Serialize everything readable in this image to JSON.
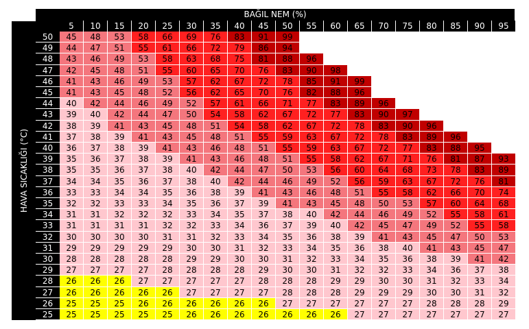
{
  "chart_data": {
    "type": "heatmap",
    "xlabel": "BAĞIL NEM (%)",
    "ylabel": "HAVA SICAKLIĞI (°C)",
    "x": [
      5,
      10,
      15,
      20,
      25,
      30,
      35,
      40,
      45,
      50,
      55,
      60,
      65,
      70,
      75,
      80,
      85,
      90,
      95
    ],
    "y": [
      50,
      49,
      48,
      47,
      46,
      45,
      44,
      43,
      42,
      41,
      40,
      39,
      38,
      37,
      36,
      35,
      34,
      33,
      32,
      31,
      30,
      29,
      28,
      27,
      26,
      25
    ],
    "values": [
      [
        45,
        48,
        53,
        58,
        66,
        69,
        76,
        83,
        91,
        99
      ],
      [
        44,
        47,
        51,
        55,
        61,
        66,
        72,
        79,
        86,
        94
      ],
      [
        43,
        46,
        49,
        53,
        58,
        63,
        68,
        75,
        81,
        88,
        96
      ],
      [
        42,
        45,
        48,
        51,
        55,
        60,
        65,
        70,
        76,
        83,
        90,
        98
      ],
      [
        41,
        43,
        46,
        49,
        53,
        57,
        62,
        67,
        72,
        78,
        85,
        91,
        99
      ],
      [
        41,
        43,
        45,
        48,
        52,
        56,
        62,
        65,
        70,
        76,
        82,
        88,
        96
      ],
      [
        40,
        42,
        44,
        46,
        49,
        52,
        57,
        61,
        66,
        71,
        77,
        83,
        89,
        96
      ],
      [
        39,
        40,
        42,
        44,
        47,
        50,
        54,
        58,
        62,
        67,
        72,
        77,
        83,
        90,
        97
      ],
      [
        38,
        39,
        41,
        43,
        45,
        48,
        51,
        54,
        58,
        62,
        67,
        72,
        78,
        83,
        90,
        96
      ],
      [
        37,
        38,
        39,
        41,
        43,
        45,
        48,
        51,
        55,
        59,
        63,
        67,
        72,
        78,
        83,
        89,
        96
      ],
      [
        36,
        37,
        38,
        39,
        41,
        43,
        46,
        48,
        51,
        55,
        59,
        63,
        67,
        72,
        77,
        83,
        88,
        95
      ],
      [
        35,
        36,
        37,
        38,
        39,
        41,
        43,
        46,
        48,
        51,
        55,
        58,
        62,
        67,
        71,
        76,
        81,
        87,
        93
      ],
      [
        35,
        35,
        36,
        37,
        38,
        40,
        42,
        44,
        47,
        50,
        53,
        56,
        60,
        64,
        68,
        73,
        78,
        83,
        89
      ],
      [
        34,
        34,
        35,
        36,
        37,
        38,
        40,
        42,
        44,
        46,
        49,
        52,
        56,
        59,
        63,
        67,
        72,
        76,
        81
      ],
      [
        33,
        33,
        34,
        34,
        35,
        36,
        38,
        39,
        41,
        43,
        46,
        48,
        51,
        55,
        58,
        62,
        66,
        70,
        74
      ],
      [
        32,
        32,
        33,
        33,
        34,
        35,
        36,
        37,
        39,
        41,
        43,
        45,
        48,
        50,
        53,
        57,
        60,
        64,
        68
      ],
      [
        31,
        31,
        32,
        32,
        32,
        33,
        34,
        35,
        37,
        38,
        40,
        42,
        44,
        46,
        49,
        52,
        55,
        58,
        61
      ],
      [
        31,
        31,
        31,
        31,
        32,
        32,
        33,
        34,
        36,
        37,
        39,
        40,
        42,
        45,
        47,
        49,
        52,
        55,
        58
      ],
      [
        30,
        30,
        30,
        30,
        31,
        31,
        32,
        33,
        34,
        35,
        36,
        38,
        39,
        41,
        43,
        45,
        47,
        50,
        53
      ],
      [
        29,
        29,
        29,
        29,
        29,
        30,
        30,
        31,
        32,
        33,
        34,
        35,
        36,
        38,
        40,
        41,
        43,
        45,
        47
      ],
      [
        28,
        28,
        28,
        28,
        28,
        29,
        29,
        30,
        30,
        31,
        32,
        33,
        34,
        35,
        36,
        38,
        39,
        41,
        42
      ],
      [
        27,
        27,
        27,
        27,
        28,
        28,
        28,
        28,
        29,
        30,
        30,
        31,
        32,
        32,
        33,
        34,
        36,
        37,
        38
      ],
      [
        26,
        26,
        26,
        27,
        27,
        27,
        27,
        27,
        28,
        28,
        28,
        29,
        29,
        30,
        30,
        31,
        32,
        33,
        34
      ],
      [
        26,
        26,
        26,
        26,
        26,
        27,
        27,
        27,
        27,
        28,
        28,
        28,
        29,
        29,
        29,
        30,
        30,
        31,
        32
      ],
      [
        25,
        25,
        25,
        26,
        26,
        26,
        26,
        26,
        26,
        27,
        27,
        27,
        27,
        27,
        27,
        28,
        28,
        28,
        29
      ],
      [
        25,
        25,
        25,
        25,
        25,
        26,
        26,
        26,
        26,
        26,
        26,
        26,
        27,
        27,
        27,
        27,
        27,
        27,
        27
      ]
    ],
    "colors": {
      "yellow": "#ffff00",
      "pink": "#ffc7ce",
      "salmon": "#f4767d",
      "red": "#ff2020",
      "darkred": "#c00000"
    },
    "color_classes": [
      "PPPPPPPPPPPPPPPPPPP",
      "PPPPPPPPPPPPPPPPPPP",
      "PPPPPPPPPPPPPPPPPPP",
      "PPPPPPPPPPPPPPPPPPP",
      "PPPPPPPPPPPPPPPPPPP",
      "PPPPPPPPPPPPPPPPPPP",
      "PPPPPPPPPPPPPPPPPPP",
      "PPPPPPPPPPPPPPPPPPP",
      "PPPPPPPPPPPPPPPPPPP",
      "PPPPPPPPPPPPPPPPPPP",
      "PPPPPPPPPPPPPPPPPPP",
      "SSSSSSSSSSSSSSSSSSS",
      "SSSSSSSSSSSSSSSSSSS",
      "SSSSSSSSSSSSSSSSSSS",
      "SSSSSSSSSSSSSSSSSSS",
      "SSSSSSSSSSSSSSSSSSS",
      "SSSSSSSSSSSSSSSSSSS",
      "SSSSSSSSSSSSSSSSSSS",
      "SSSSSSSSSSSSSSSSSSS",
      "SSSSSSSSSSSSSSSSSSS",
      "SSSSSSSSSSSSSSSSSSS",
      "SSSSSSSSSSSSSSSSSSS",
      "YYYPPPPPPPPPPPPPPPP",
      "YYYYYPPPPPPPPPPPPPP",
      "YYYYYYYYYPPPPPPPPPP",
      "YYYYYYYYYYYYPPPPPPP"
    ]
  }
}
